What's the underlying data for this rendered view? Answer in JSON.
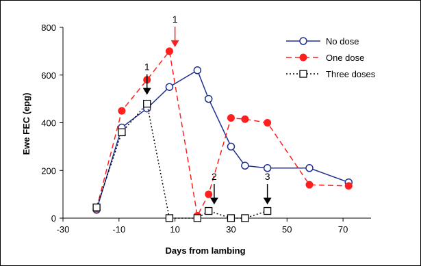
{
  "chart_data": {
    "type": "line",
    "xlabel": "Days from lambing",
    "ylabel": "Ewe FEC (epg)",
    "xlim": [
      -30,
      80
    ],
    "ylim": [
      0,
      800
    ],
    "xticks": [
      -30,
      -10,
      10,
      30,
      50,
      70
    ],
    "yticks": [
      0,
      200,
      400,
      600,
      800
    ],
    "grid": false,
    "legend_position": "top-right",
    "series": [
      {
        "name": "No dose",
        "color": "#1f2f8f",
        "line_style": "solid",
        "marker": "open-circle",
        "x": [
          -18,
          -9,
          0,
          8,
          18,
          22,
          30,
          35,
          43,
          58,
          72
        ],
        "y": [
          35,
          380,
          460,
          550,
          620,
          500,
          300,
          220,
          210,
          210,
          150
        ]
      },
      {
        "name": "One dose",
        "color": "#ff1f1f",
        "line_style": "dashed",
        "marker": "filled-circle",
        "x": [
          -18,
          -9,
          0,
          8,
          18,
          22,
          30,
          35,
          43,
          58,
          72
        ],
        "y": [
          40,
          450,
          580,
          700,
          10,
          100,
          420,
          415,
          400,
          140,
          135
        ]
      },
      {
        "name": "Three doses",
        "color": "#000000",
        "line_style": "dotted",
        "marker": "open-square",
        "x": [
          -18,
          -9,
          0,
          8,
          18,
          22,
          30,
          35,
          43
        ],
        "y": [
          45,
          360,
          480,
          0,
          0,
          30,
          0,
          0,
          30
        ]
      }
    ],
    "annotations": [
      {
        "text": "1",
        "x": 10,
        "y": 700,
        "arrow_color": "#ff1f1f"
      },
      {
        "text": "1",
        "x": 0,
        "y": 500,
        "arrow_color": "#000000"
      },
      {
        "text": "2",
        "x": 24,
        "y": 40,
        "arrow_color": "#000000"
      },
      {
        "text": "3",
        "x": 43,
        "y": 40,
        "arrow_color": "#000000"
      }
    ]
  }
}
